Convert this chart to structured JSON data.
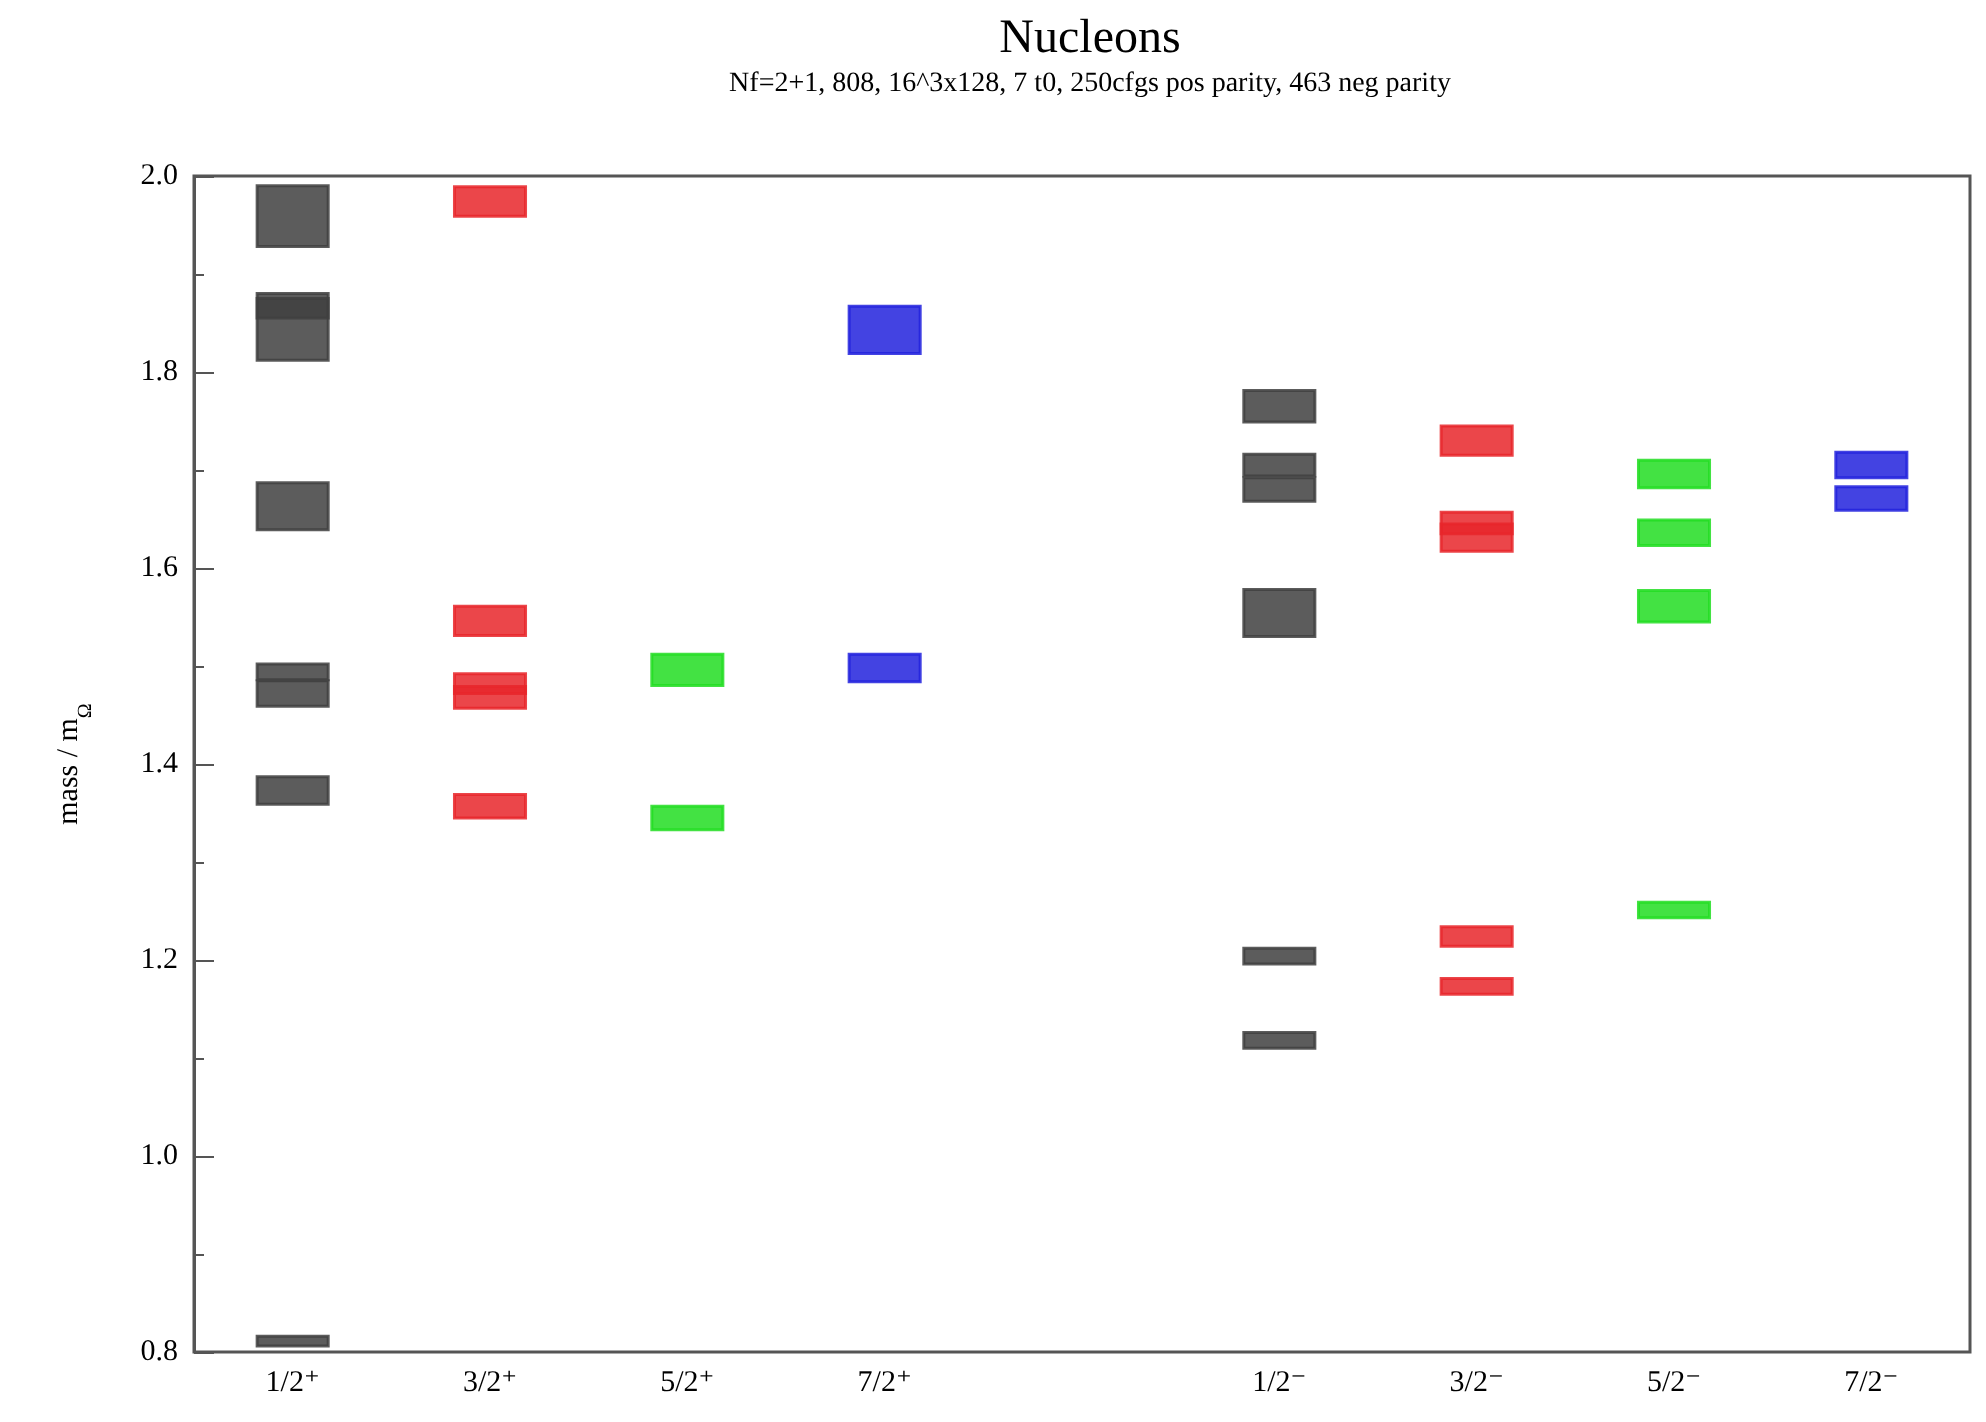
{
  "chart_data": {
    "type": "bar",
    "title": "Nucleons",
    "subtitle": "Nf=2+1, 808, 16^3x128, 7 t0, 250cfgs pos parity, 463 neg parity",
    "ylabel": "mass / m$_{Ω}$",
    "categories": [
      "1/2⁺",
      "3/2⁺",
      "5/2⁺",
      "7/2⁺",
      null,
      "1/2⁻",
      "3/2⁻",
      "5/2⁻",
      "7/2⁻"
    ],
    "ylim": [
      0.8,
      2.0
    ],
    "yticks": [
      0.8,
      {
        "value": 1,
        "label": "1.0"
      },
      1.2,
      1.4,
      1.6,
      1.8,
      {
        "value": 2,
        "label": "2.0"
      }
    ],
    "grid": false,
    "series": [
      {
        "colors": [
          "#404040",
          "#e8262a",
          "#22dd22",
          "#2222dd",
          null,
          "#404040",
          "#e8262a",
          "#22dd22",
          "#2222dd"
        ],
        "values": [
          0.062,
          0.03,
          0.032,
          0.048,
          null,
          0.032,
          0.03,
          0.028,
          0.026
        ],
        "base": [
          1.928,
          1.959,
          1.48,
          1.819,
          null,
          1.749,
          1.715,
          1.682,
          1.692
        ]
      },
      {
        "colors": [
          "#404040",
          "#e8262a",
          "#22dd22",
          "#2222dd",
          null,
          "#404040",
          "#e8262a",
          "#22dd22",
          "#2222dd"
        ],
        "values": [
          0.02,
          0.03,
          0.024,
          0.028,
          null,
          0.022,
          0.022,
          0.026,
          0.024
        ],
        "base": [
          1.855,
          1.531,
          1.333,
          1.484,
          null,
          1.694,
          1.635,
          1.623,
          1.659
        ]
      },
      {
        "colors": [
          "#404040",
          "#e8262a",
          null,
          null,
          null,
          "#404040",
          "#e8262a",
          "#22dd22",
          null
        ],
        "values": [
          0.068,
          0.02,
          null,
          null,
          null,
          0.024,
          0.028,
          0.032,
          null
        ],
        "base": [
          1.812,
          1.472,
          null,
          null,
          null,
          1.668,
          1.617,
          1.545,
          null
        ]
      },
      {
        "colors": [
          "#404040",
          "#e8262a",
          null,
          null,
          null,
          "#404040",
          "#e8262a",
          "#22dd22",
          null
        ],
        "values": [
          0.048,
          0.022,
          null,
          null,
          null,
          0.048,
          0.02,
          0.016,
          null
        ],
        "base": [
          1.639,
          1.457,
          null,
          null,
          null,
          1.53,
          1.214,
          1.243,
          null
        ]
      },
      {
        "colors": [
          "#404040",
          "#e8262a",
          null,
          null,
          null,
          "#404040",
          "#e8262a",
          null,
          null
        ],
        "values": [
          0.016,
          0.024,
          null,
          null,
          null,
          0.016,
          0.016,
          null,
          null
        ],
        "base": [
          1.486,
          1.345,
          null,
          null,
          null,
          1.196,
          1.165,
          null,
          null
        ]
      },
      {
        "colors": [
          "#404040",
          null,
          null,
          null,
          null,
          "#404040",
          null,
          null,
          null
        ],
        "values": [
          0.026,
          null,
          null,
          null,
          null,
          0.016,
          null,
          null,
          null
        ],
        "base": [
          1.459,
          null,
          null,
          null,
          null,
          1.11,
          null,
          null,
          null
        ]
      },
      {
        "colors": [
          "#404040",
          null,
          null,
          null,
          null,
          null,
          null,
          null,
          null
        ],
        "values": [
          0.028,
          null,
          null,
          null,
          null,
          null,
          null,
          null,
          null
        ],
        "base": [
          1.359,
          null,
          null,
          null,
          null,
          null,
          null,
          null,
          null
        ]
      },
      {
        "colors": [
          "#404040",
          null,
          null,
          null,
          null,
          null,
          null,
          null,
          null
        ],
        "values": [
          0.01,
          null,
          null,
          null,
          null,
          null,
          null,
          null,
          null
        ],
        "base": [
          0.806,
          null,
          null,
          null,
          null,
          null,
          null,
          null,
          null
        ]
      }
    ]
  }
}
